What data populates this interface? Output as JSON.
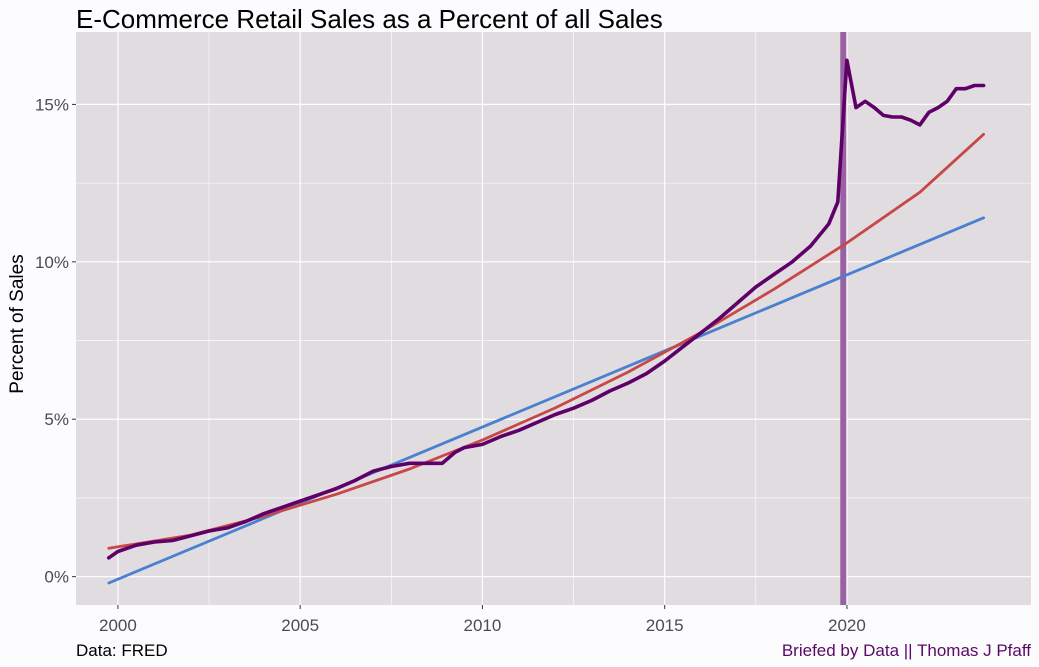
{
  "chart_data": {
    "type": "line",
    "title": "E-Commerce Retail Sales as a Percent of all Sales",
    "xlabel": "",
    "ylabel": "Percent of Sales",
    "xlim": [
      1998.85,
      2025.05
    ],
    "ylim": [
      -0.9,
      17.3
    ],
    "x_ticks": [
      2000,
      2005,
      2010,
      2015,
      2020
    ],
    "x_tick_labels": [
      "2000",
      "2005",
      "2010",
      "2015",
      "2020"
    ],
    "y_ticks": [
      0,
      5,
      10,
      15
    ],
    "y_tick_labels": [
      "0%",
      "5%",
      "10%",
      "15%"
    ],
    "grid": true,
    "background": "#e0dce0",
    "caption_left": "Data: FRED",
    "caption_right": "Briefed by Data || Thomas J Pfaff",
    "caption_right_color": "#5a0a66",
    "vertical_line": {
      "x": 2019.9,
      "color": "#9b5fa3"
    },
    "series": [
      {
        "color": "#5e0068",
        "x": [
          1999.75,
          2000.0,
          2000.5,
          2001.0,
          2001.5,
          2002.0,
          2002.5,
          2003.0,
          2003.5,
          2004.0,
          2004.5,
          2005.0,
          2005.5,
          2006.0,
          2006.5,
          2007.0,
          2007.5,
          2008.0,
          2008.5,
          2008.9,
          2009.25,
          2009.5,
          2010.0,
          2010.5,
          2011.0,
          2011.5,
          2012.0,
          2012.5,
          2013.0,
          2013.5,
          2014.0,
          2014.5,
          2015.0,
          2015.5,
          2016.0,
          2016.5,
          2017.0,
          2017.5,
          2018.0,
          2018.5,
          2019.0,
          2019.5,
          2019.75,
          2020.0,
          2020.25,
          2020.5,
          2020.75,
          2021.0,
          2021.25,
          2021.5,
          2021.75,
          2022.0,
          2022.25,
          2022.5,
          2022.75,
          2023.0,
          2023.25,
          2023.5,
          2023.75
        ],
        "y": [
          0.6,
          0.8,
          1.0,
          1.1,
          1.15,
          1.3,
          1.45,
          1.55,
          1.75,
          2.0,
          2.2,
          2.4,
          2.6,
          2.8,
          3.05,
          3.35,
          3.5,
          3.6,
          3.6,
          3.6,
          3.95,
          4.1,
          4.2,
          4.45,
          4.65,
          4.9,
          5.15,
          5.35,
          5.6,
          5.9,
          6.15,
          6.45,
          6.85,
          7.3,
          7.75,
          8.2,
          8.7,
          9.2,
          9.6,
          10.0,
          10.5,
          11.2,
          11.9,
          16.4,
          14.9,
          15.1,
          14.9,
          14.65,
          14.6,
          14.6,
          14.5,
          14.35,
          14.75,
          14.9,
          15.1,
          15.5,
          15.5,
          15.6,
          15.6
        ]
      },
      {
        "color": "#4a80d0",
        "x": [
          1999.75,
          2023.75
        ],
        "y": [
          -0.2,
          11.4
        ]
      },
      {
        "color": "#c84848",
        "x": [
          1999.75,
          2002.0,
          2004.0,
          2006.0,
          2008.0,
          2010.0,
          2012.0,
          2014.0,
          2016.0,
          2018.0,
          2020.0,
          2022.0,
          2023.75
        ],
        "y": [
          0.9,
          1.32,
          1.92,
          2.62,
          3.42,
          4.34,
          5.36,
          6.5,
          7.76,
          9.13,
          10.6,
          12.21,
          14.05
        ]
      }
    ]
  }
}
